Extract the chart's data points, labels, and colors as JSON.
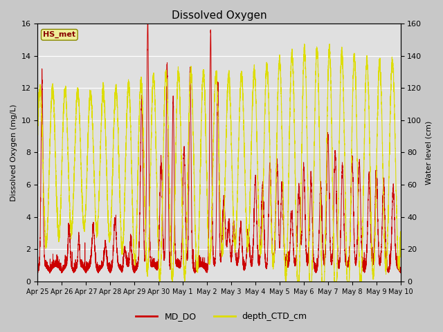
{
  "title": "Dissolved Oxygen",
  "ylabel_left": "Dissolved Oxygen (mg/L)",
  "ylabel_right": "Water level (cm)",
  "ylim_left": [
    0,
    16
  ],
  "ylim_right": [
    0,
    160
  ],
  "yticks_left": [
    0,
    2,
    4,
    6,
    8,
    10,
    12,
    14,
    16
  ],
  "yticks_right": [
    0,
    20,
    40,
    60,
    80,
    100,
    120,
    140,
    160
  ],
  "fig_bg_color": "#c8c8c8",
  "plot_bg_color": "#e0e0e0",
  "plot_bg_dark": "#cccccc",
  "line_color_DO": "#cc0000",
  "line_color_depth": "#dddd00",
  "legend_label_DO": "MD_DO",
  "legend_label_depth": "depth_CTD_cm",
  "annotation_text": "HS_met",
  "annotation_color": "#880000",
  "annotation_bg": "#eeee99",
  "annotation_border": "#888800",
  "x_tick_labels": [
    "Apr 25",
    "Apr 26",
    "Apr 27",
    "Apr 28",
    "Apr 29",
    "Apr 30",
    "May 1",
    "May 2",
    "May 3",
    "May 4",
    "May 5",
    "May 6",
    "May 7",
    "May 8",
    "May 9",
    "May 10"
  ],
  "n_points": 7200,
  "figsize": [
    6.4,
    4.8
  ],
  "dpi": 100
}
